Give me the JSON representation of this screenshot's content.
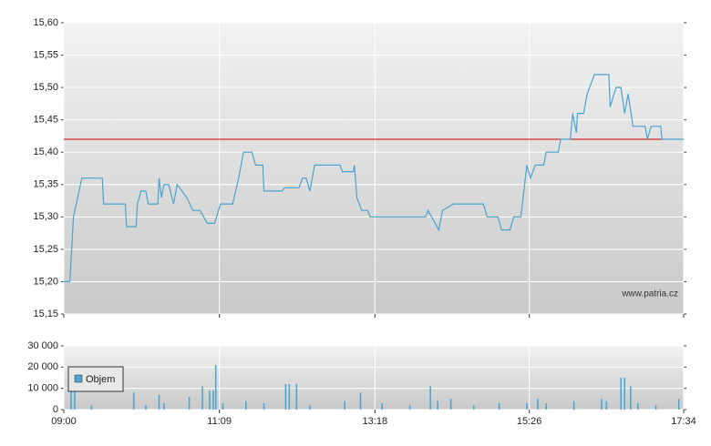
{
  "chart_data": [
    {
      "type": "line",
      "color": "#4aa3d0",
      "grid": true,
      "annotation": "www.patria.cz",
      "reference_line": {
        "value": 15.42,
        "color": "#cc0000"
      },
      "ylim": [
        15.15,
        15.6
      ],
      "yticks": [
        {
          "value": 15.15,
          "label": "15,15"
        },
        {
          "value": 15.2,
          "label": "15,20"
        },
        {
          "value": 15.25,
          "label": "15,25"
        },
        {
          "value": 15.3,
          "label": "15,30"
        },
        {
          "value": 15.35,
          "label": "15,35"
        },
        {
          "value": 15.4,
          "label": "15,40"
        },
        {
          "value": 15.45,
          "label": "15,45"
        },
        {
          "value": 15.5,
          "label": "15,50"
        },
        {
          "value": 15.55,
          "label": "15,55"
        },
        {
          "value": 15.6,
          "label": "15,60"
        }
      ],
      "xlim": [
        "09:00",
        "17:34"
      ],
      "x": [
        "09:00",
        "09:05",
        "09:08",
        "09:15",
        "09:32",
        "09:33",
        "09:51",
        "09:52",
        "10:00",
        "10:01",
        "10:04",
        "10:08",
        "10:10",
        "10:18",
        "10:19",
        "10:21",
        "10:23",
        "10:27",
        "10:31",
        "10:34",
        "10:42",
        "10:47",
        "10:53",
        "10:59",
        "11:05",
        "11:10",
        "11:20",
        "11:25",
        "11:29",
        "11:36",
        "11:39",
        "11:45",
        "11:46",
        "12:01",
        "12:03",
        "12:15",
        "12:18",
        "12:21",
        "12:24",
        "12:28",
        "12:49",
        "12:51",
        "13:00",
        "13:01",
        "13:03",
        "13:07",
        "13:12",
        "13:14",
        "14:00",
        "14:02",
        "14:08",
        "14:11",
        "14:14",
        "14:23",
        "14:48",
        "14:51",
        "15:00",
        "15:03",
        "15:10",
        "15:13",
        "15:19",
        "15:24",
        "15:27",
        "15:31",
        "15:38",
        "15:40",
        "15:50",
        "15:52",
        "16:00",
        "16:02",
        "16:05",
        "16:06",
        "16:11",
        "16:14",
        "16:20",
        "16:32",
        "16:33",
        "16:38",
        "16:42",
        "16:45",
        "16:48",
        "16:52",
        "17:02",
        "17:04",
        "17:07",
        "17:15",
        "17:16",
        "17:34"
      ],
      "values": [
        15.2,
        15.2,
        15.3,
        15.36,
        15.36,
        15.32,
        15.32,
        15.285,
        15.285,
        15.32,
        15.34,
        15.34,
        15.32,
        15.32,
        15.36,
        15.33,
        15.35,
        15.35,
        15.32,
        15.35,
        15.33,
        15.31,
        15.31,
        15.29,
        15.29,
        15.32,
        15.32,
        15.36,
        15.4,
        15.4,
        15.38,
        15.38,
        15.34,
        15.34,
        15.345,
        15.345,
        15.36,
        15.36,
        15.34,
        15.38,
        15.38,
        15.37,
        15.37,
        15.38,
        15.33,
        15.31,
        15.31,
        15.3,
        15.3,
        15.31,
        15.29,
        15.28,
        15.31,
        15.32,
        15.32,
        15.3,
        15.3,
        15.28,
        15.28,
        15.3,
        15.3,
        15.38,
        15.36,
        15.38,
        15.38,
        15.4,
        15.4,
        15.42,
        15.42,
        15.46,
        15.43,
        15.46,
        15.46,
        15.49,
        15.52,
        15.52,
        15.47,
        15.5,
        15.5,
        15.46,
        15.49,
        15.44,
        15.44,
        15.42,
        15.44,
        15.44,
        15.42,
        15.42
      ]
    },
    {
      "type": "bar",
      "grid": true,
      "legend": "upper-left",
      "ylim": [
        0,
        30000
      ],
      "yticks": [
        0,
        {
          "value": 10000,
          "label": "10 000"
        },
        {
          "value": 20000,
          "label": "20 000"
        },
        {
          "value": 30000,
          "label": "30 000"
        }
      ],
      "xlim": [
        "09:00",
        "17:34"
      ],
      "xticks": [
        "09:00",
        "11:09",
        "13:18",
        "15:26",
        "17:34"
      ],
      "x": [
        "09:06",
        "09:09",
        "09:23",
        "09:58",
        "10:08",
        "10:19",
        "10:23",
        "10:44",
        "10:55",
        "11:01",
        "11:04",
        "11:06",
        "11:12",
        "11:31",
        "11:46",
        "12:04",
        "12:07",
        "12:13",
        "12:24",
        "12:53",
        "13:06",
        "13:24",
        "13:47",
        "14:04",
        "14:10",
        "14:21",
        "14:40",
        "15:01",
        "15:24",
        "15:33",
        "15:40",
        "16:03",
        "16:26",
        "16:30",
        "16:42",
        "16:45",
        "16:50",
        "16:56",
        "17:11",
        "17:30"
      ],
      "series": [
        {
          "name": "Objem",
          "color": "#4aa3d0",
          "values": [
            10000,
            12000,
            2000,
            8000,
            2000,
            7000,
            3000,
            6000,
            11000,
            9000,
            9000,
            21000,
            3000,
            4000,
            3000,
            12000,
            12000,
            12000,
            2000,
            4000,
            8000,
            3000,
            2000,
            11000,
            4000,
            5000,
            2000,
            3000,
            3000,
            5000,
            3000,
            4000,
            5000,
            4000,
            15000,
            15000,
            11000,
            3000,
            2000,
            5000
          ]
        }
      ]
    }
  ]
}
